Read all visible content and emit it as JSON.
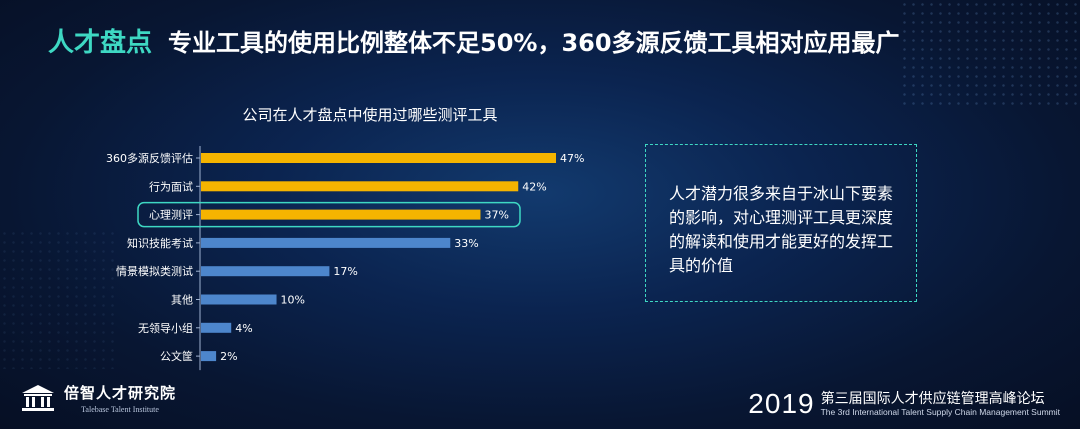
{
  "header": {
    "tag": "人才盘点",
    "title": "专业工具的使用比例整体不足50%，360多源反馈工具相对应用最广"
  },
  "chart_data": {
    "type": "bar",
    "orientation": "horizontal",
    "title": "公司在人才盘点中使用过哪些测评工具",
    "categories": [
      "360多源反馈评估",
      "行为面试",
      "心理测评",
      "知识技能考试",
      "情景模拟类测试",
      "其他",
      "无领导小组",
      "公文筐"
    ],
    "values": [
      47,
      42,
      37,
      33,
      17,
      10,
      4,
      2
    ],
    "value_labels": [
      "47%",
      "42%",
      "37%",
      "33%",
      "17%",
      "10%",
      "4%",
      "2%"
    ],
    "unit": "%",
    "xlim": [
      0,
      50
    ],
    "highlight_color": "#f5b400",
    "base_color": "#4d86cc",
    "highlighted": [
      "360多源反馈评估",
      "行为面试",
      "心理测评"
    ],
    "outlined": "心理测评",
    "outline_color": "#3ed8c3",
    "grid": false
  },
  "note": {
    "text": "人才潜力很多来自于冰山下要素的影响，对心理测评工具更深度的解读和使用才能更好的发挥工具的价值"
  },
  "footer": {
    "logo_name": "倍智人才研究院",
    "logo_sub": "Talebase Talent Institute",
    "year": "2019",
    "event_cn": "第三届国际人才供应链管理高峰论坛",
    "event_en": "The 3rd International Talent Supply Chain Management Summit"
  }
}
